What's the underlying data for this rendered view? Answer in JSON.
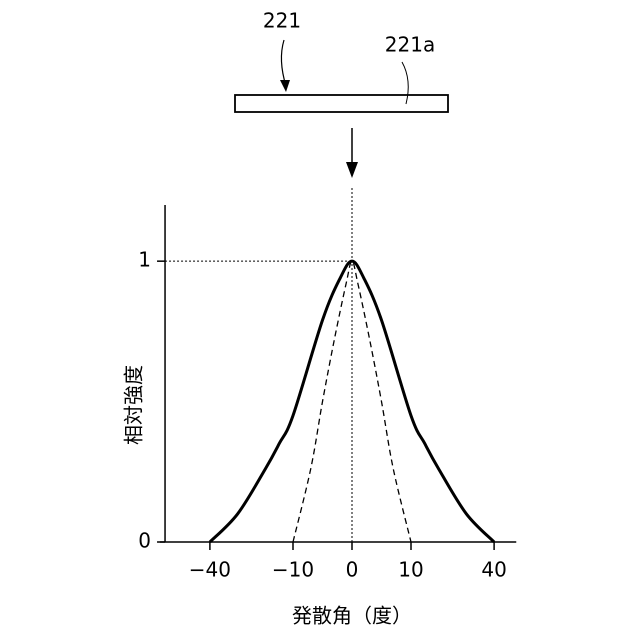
{
  "labels": {
    "device": "221",
    "surface": "221a"
  },
  "chart_data": {
    "type": "line",
    "y_label": "相対強度",
    "x_label": "発散角（度）",
    "xlim": [
      -58,
      48
    ],
    "ylim": [
      0,
      1.2
    ],
    "xticks": [
      {
        "value": -40,
        "label": "−40"
      },
      {
        "value": -10,
        "label": "−10"
      },
      0,
      10,
      40
    ],
    "yticks": [
      0,
      1
    ],
    "series": [
      {
        "style": "solid",
        "color": "#000000",
        "x": [
          -40,
          -30,
          -20,
          -15,
          -10,
          -5,
          -2,
          0,
          2,
          5,
          10,
          15,
          20,
          30,
          40
        ],
        "values": [
          0,
          0.1,
          0.26,
          0.35,
          0.45,
          0.79,
          0.94,
          1,
          0.94,
          0.79,
          0.45,
          0.35,
          0.26,
          0.1,
          0
        ]
      },
      {
        "style": "dashed",
        "color": "#000000",
        "x": [
          -10,
          -7,
          -5,
          -3,
          -1,
          0,
          1,
          3,
          5,
          7,
          10
        ],
        "values": [
          0,
          0.26,
          0.5,
          0.72,
          0.92,
          1,
          0.92,
          0.72,
          0.5,
          0.26,
          0
        ]
      }
    ]
  }
}
